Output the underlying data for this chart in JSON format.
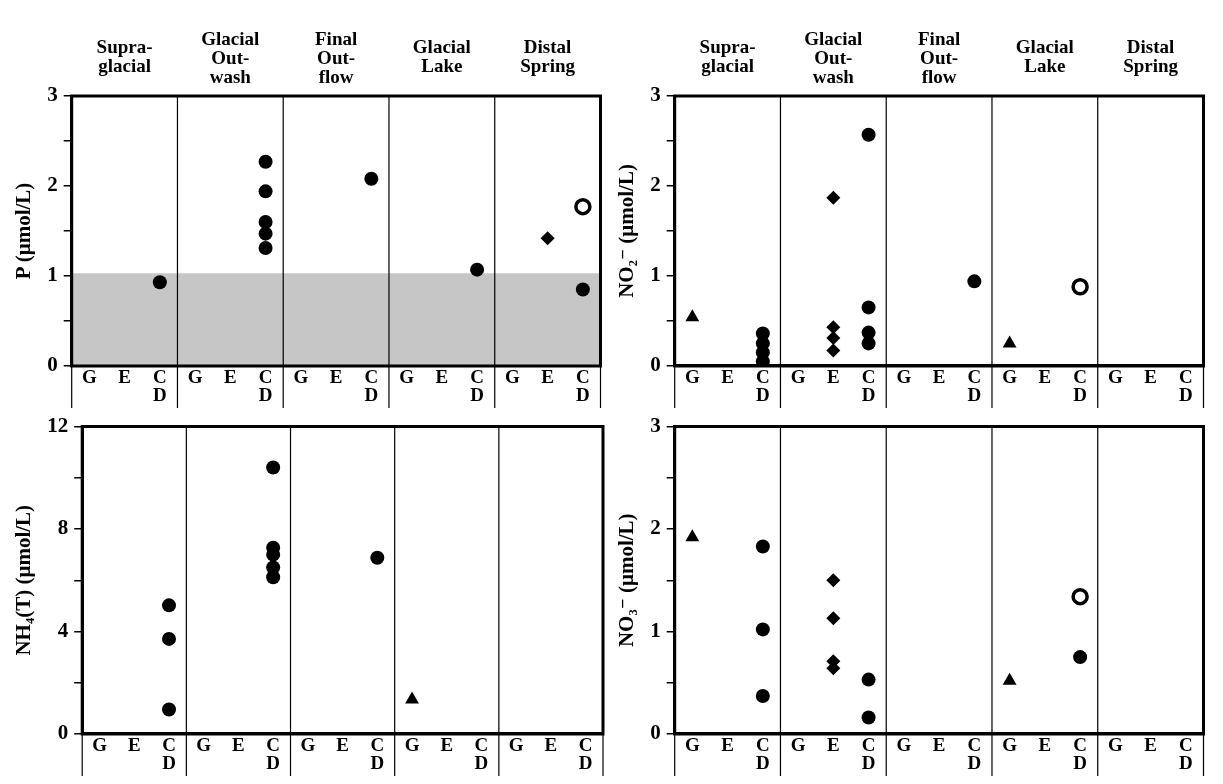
{
  "chart_data": [
    {
      "type": "scatter",
      "ylabel": "P (μmol/L)",
      "annotations": [
        "Supra-\nglacial",
        "Glacial\nOut-\nwash",
        "Final\nOut-\nflow",
        "Glacial\nLake",
        "Distal\nSpring"
      ],
      "categories": [
        "G",
        "E",
        "C\nD",
        "G",
        "E",
        "C\nD",
        "G",
        "E",
        "C\nD",
        "G",
        "E",
        "C\nD",
        "G",
        "E",
        "C\nD"
      ],
      "ylim": [
        0,
        3
      ],
      "yticks": [
        0,
        {
          "value": 0.5,
          "label": null
        },
        1,
        {
          "value": 1.5,
          "label": null
        },
        2,
        {
          "value": 2.5,
          "label": null
        },
        3
      ],
      "grid": false,
      "legend": false,
      "bands": [
        {
          "axis": "y",
          "from": 0,
          "to": 1.03,
          "color": "#c6c6c6"
        }
      ],
      "series": [
        {
          "color": "#000000",
          "marker": "diamond",
          "values": [
            null,
            null,
            null,
            null,
            null,
            null,
            null,
            null,
            null,
            null,
            null,
            null,
            null,
            1.42,
            null
          ]
        },
        {
          "color": "#000000",
          "marker": "circle",
          "values": [
            null,
            null,
            0.93,
            null,
            null,
            2.27,
            null,
            null,
            2.08,
            null,
            null,
            1.07,
            null,
            null,
            0.85
          ]
        },
        {
          "color": "#000000",
          "marker": "circle",
          "values": [
            null,
            null,
            null,
            null,
            null,
            1.94,
            null,
            null,
            null,
            null,
            null,
            null,
            null,
            null,
            null
          ]
        },
        {
          "color": "#000000",
          "marker": "circle",
          "values": [
            null,
            null,
            null,
            null,
            null,
            1.6,
            null,
            null,
            null,
            null,
            null,
            null,
            null,
            null,
            null
          ]
        },
        {
          "color": "#000000",
          "marker": "circle",
          "values": [
            null,
            null,
            null,
            null,
            null,
            1.47,
            null,
            null,
            null,
            null,
            null,
            null,
            null,
            null,
            null
          ]
        },
        {
          "color": "#000000",
          "marker": "circle",
          "values": [
            null,
            null,
            null,
            null,
            null,
            1.31,
            null,
            null,
            null,
            null,
            null,
            null,
            null,
            null,
            null
          ]
        },
        {
          "color": "#ffffff",
          "marker": "circle",
          "values": [
            null,
            null,
            null,
            null,
            null,
            null,
            null,
            null,
            null,
            null,
            null,
            null,
            null,
            null,
            1.77
          ]
        }
      ]
    },
    {
      "type": "scatter",
      "ylabel": "NO₂⁻ (μmol/L)",
      "annotations": [
        "Supra-\nglacial",
        "Glacial\nOut-\nwash",
        "Final\nOut-\nflow",
        "Glacial\nLake",
        "Distal\nSpring"
      ],
      "categories": [
        "G",
        "E",
        "C\nD",
        "G",
        "E",
        "C\nD",
        "G",
        "E",
        "C\nD",
        "G",
        "E",
        "C\nD",
        "G",
        "E",
        "C\nD"
      ],
      "ylim": [
        0,
        3
      ],
      "yticks": [
        0,
        {
          "value": 0.5,
          "label": null
        },
        1,
        {
          "value": 1.5,
          "label": null
        },
        2,
        {
          "value": 2.5,
          "label": null
        },
        3
      ],
      "grid": false,
      "legend": false,
      "series": [
        {
          "color": "#000000",
          "marker": "triangle",
          "values": [
            0.54,
            null,
            null,
            null,
            null,
            null,
            null,
            null,
            null,
            0.25,
            null,
            null,
            null,
            null,
            null
          ]
        },
        {
          "color": "#000000",
          "marker": "diamond",
          "values": [
            null,
            null,
            null,
            null,
            1.87,
            null,
            null,
            null,
            null,
            null,
            null,
            null,
            null,
            null,
            null
          ]
        },
        {
          "color": "#000000",
          "marker": "diamond",
          "values": [
            null,
            null,
            null,
            null,
            0.43,
            null,
            null,
            null,
            null,
            null,
            null,
            null,
            null,
            null,
            null
          ]
        },
        {
          "color": "#000000",
          "marker": "diamond",
          "values": [
            null,
            null,
            null,
            null,
            0.31,
            null,
            null,
            null,
            null,
            null,
            null,
            null,
            null,
            null,
            null
          ]
        },
        {
          "color": "#000000",
          "marker": "diamond",
          "values": [
            null,
            null,
            null,
            null,
            0.17,
            null,
            null,
            null,
            null,
            null,
            null,
            null,
            null,
            null,
            null
          ]
        },
        {
          "color": "#000000",
          "marker": "circle",
          "values": [
            null,
            null,
            0.36,
            null,
            null,
            2.57,
            null,
            null,
            0.94,
            null,
            null,
            null,
            null,
            null,
            null
          ]
        },
        {
          "color": "#000000",
          "marker": "circle",
          "values": [
            null,
            null,
            0.25,
            null,
            null,
            0.65,
            null,
            null,
            null,
            null,
            null,
            null,
            null,
            null,
            null
          ]
        },
        {
          "color": "#000000",
          "marker": "circle",
          "values": [
            null,
            null,
            0.15,
            null,
            null,
            0.37,
            null,
            null,
            null,
            null,
            null,
            null,
            null,
            null,
            null
          ]
        },
        {
          "color": "#000000",
          "marker": "circle",
          "values": [
            null,
            null,
            0.05,
            null,
            null,
            0.25,
            null,
            null,
            null,
            null,
            null,
            null,
            null,
            null,
            null
          ]
        },
        {
          "color": "#ffffff",
          "marker": "circle",
          "values": [
            null,
            null,
            null,
            null,
            null,
            null,
            null,
            null,
            null,
            null,
            null,
            0.88,
            null,
            null,
            null
          ]
        }
      ]
    },
    {
      "type": "scatter",
      "ylabel": "NH₄(T) (μmol/L)",
      "categories": [
        "G",
        "E",
        "C\nD",
        "G",
        "E",
        "C\nD",
        "G",
        "E",
        "C\nD",
        "G",
        "E",
        "C\nD",
        "G",
        "E",
        "C\nD"
      ],
      "ylim": [
        0,
        12
      ],
      "yticks": [
        0,
        {
          "value": 2,
          "label": null
        },
        4,
        {
          "value": 6,
          "label": null
        },
        8,
        {
          "value": 10,
          "label": null
        },
        12
      ],
      "grid": false,
      "legend": false,
      "series": [
        {
          "color": "#000000",
          "marker": "triangle",
          "values": [
            null,
            null,
            null,
            null,
            null,
            null,
            null,
            null,
            null,
            1.34,
            null,
            null,
            null,
            null,
            null
          ]
        },
        {
          "color": "#000000",
          "marker": "circle",
          "values": [
            null,
            null,
            5.02,
            null,
            null,
            10.4,
            null,
            null,
            6.88,
            null,
            null,
            null,
            null,
            null,
            null
          ]
        },
        {
          "color": "#000000",
          "marker": "circle",
          "values": [
            null,
            null,
            3.71,
            null,
            null,
            7.27,
            null,
            null,
            null,
            null,
            null,
            null,
            null,
            null,
            null
          ]
        },
        {
          "color": "#000000",
          "marker": "circle",
          "values": [
            null,
            null,
            0.95,
            null,
            null,
            7.0,
            null,
            null,
            null,
            null,
            null,
            null,
            null,
            null,
            null
          ]
        },
        {
          "color": "#000000",
          "marker": "circle",
          "values": [
            null,
            null,
            null,
            null,
            null,
            6.5,
            null,
            null,
            null,
            null,
            null,
            null,
            null,
            null,
            null
          ]
        },
        {
          "color": "#000000",
          "marker": "circle",
          "values": [
            null,
            null,
            null,
            null,
            null,
            6.12,
            null,
            null,
            null,
            null,
            null,
            null,
            null,
            null,
            null
          ]
        }
      ]
    },
    {
      "type": "scatter",
      "ylabel": "NO₃⁻ (μmol/L)",
      "categories": [
        "G",
        "E",
        "C\nD",
        "G",
        "E",
        "C\nD",
        "G",
        "E",
        "C\nD",
        "G",
        "E",
        "C\nD",
        "G",
        "E",
        "C\nD"
      ],
      "ylim": [
        0,
        3
      ],
      "yticks": [
        0,
        {
          "value": 0.5,
          "label": null
        },
        1,
        {
          "value": 1.5,
          "label": null
        },
        2,
        {
          "value": 2.5,
          "label": null
        },
        3
      ],
      "grid": false,
      "legend": false,
      "series": [
        {
          "color": "#000000",
          "marker": "triangle",
          "values": [
            1.92,
            null,
            null,
            null,
            null,
            null,
            null,
            null,
            null,
            0.52,
            null,
            null,
            null,
            null,
            null
          ]
        },
        {
          "color": "#000000",
          "marker": "diamond",
          "values": [
            null,
            null,
            null,
            null,
            1.5,
            null,
            null,
            null,
            null,
            null,
            null,
            null,
            null,
            null,
            null
          ]
        },
        {
          "color": "#000000",
          "marker": "diamond",
          "values": [
            null,
            null,
            null,
            null,
            1.13,
            null,
            null,
            null,
            null,
            null,
            null,
            null,
            null,
            null,
            null
          ]
        },
        {
          "color": "#000000",
          "marker": "diamond",
          "values": [
            null,
            null,
            null,
            null,
            0.71,
            null,
            null,
            null,
            null,
            null,
            null,
            null,
            null,
            null,
            null
          ]
        },
        {
          "color": "#000000",
          "marker": "diamond",
          "values": [
            null,
            null,
            null,
            null,
            0.64,
            null,
            null,
            null,
            null,
            null,
            null,
            null,
            null,
            null,
            null
          ]
        },
        {
          "color": "#000000",
          "marker": "circle",
          "values": [
            null,
            null,
            1.83,
            null,
            null,
            0.53,
            null,
            null,
            null,
            null,
            null,
            0.75,
            null,
            null,
            null
          ]
        },
        {
          "color": "#000000",
          "marker": "circle",
          "values": [
            null,
            null,
            1.02,
            null,
            null,
            0.16,
            null,
            null,
            null,
            null,
            null,
            null,
            null,
            null,
            null
          ]
        },
        {
          "color": "#000000",
          "marker": "circle",
          "values": [
            null,
            null,
            0.37,
            null,
            null,
            null,
            null,
            null,
            null,
            null,
            null,
            null,
            null,
            null,
            null
          ]
        },
        {
          "color": "#ffffff",
          "marker": "circle",
          "values": [
            null,
            null,
            null,
            null,
            null,
            null,
            null,
            null,
            null,
            null,
            null,
            1.34,
            null,
            null,
            null
          ]
        }
      ]
    }
  ]
}
